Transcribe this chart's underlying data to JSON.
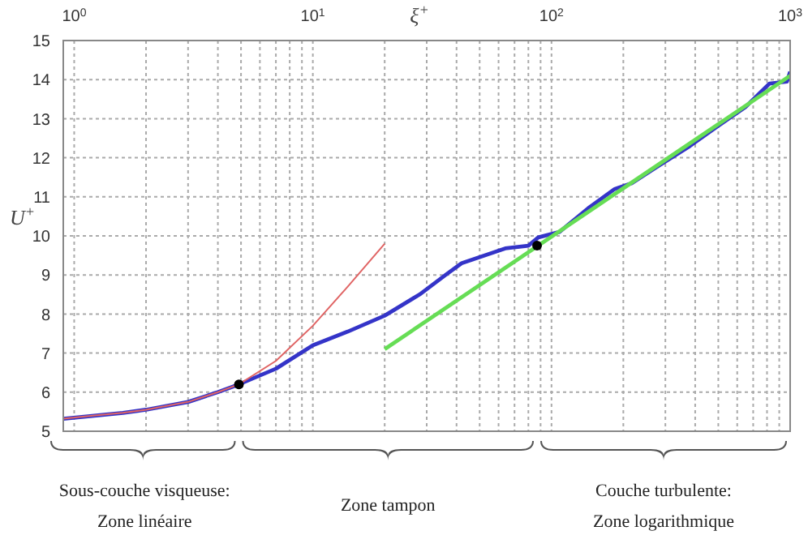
{
  "chart_data": {
    "type": "line",
    "xlabel": "ξ$^{+}$",
    "ylabel": "U$^{+}$",
    "annotations": [
      "Sous-couche visqueuse:",
      "Zone linéaire",
      "Zone tampon",
      "Couche turbulente:",
      "Zone logarithmique"
    ],
    "log": "x",
    "grid": true,
    "legend": false,
    "marker": "none",
    "line_style": "solid",
    "xlim": [
      0.9,
      1000
    ],
    "ylim": [
      5,
      15
    ],
    "yticks": [
      5,
      6,
      7,
      8,
      9,
      10,
      11,
      12,
      13,
      14,
      15
    ],
    "xticks": [
      {
        "value": 1,
        "label": "10$^{0}$"
      },
      {
        "value": 2,
        "label": null
      },
      {
        "value": 3,
        "label": null
      },
      {
        "value": 4,
        "label": null
      },
      {
        "value": 5,
        "label": null
      },
      {
        "value": 6,
        "label": null
      },
      {
        "value": 7,
        "label": null
      },
      {
        "value": 8,
        "label": null
      },
      {
        "value": 9,
        "label": null
      },
      {
        "value": 10,
        "label": "10$^{1}$"
      },
      {
        "value": 20,
        "label": null
      },
      {
        "value": 30,
        "label": null
      },
      {
        "value": 40,
        "label": null
      },
      {
        "value": 50,
        "label": null
      },
      {
        "value": 60,
        "label": null
      },
      {
        "value": 70,
        "label": null
      },
      {
        "value": 80,
        "label": null
      },
      {
        "value": 90,
        "label": null
      },
      {
        "value": 100,
        "label": "10$^{2}$"
      },
      {
        "value": 200,
        "label": null
      },
      {
        "value": 300,
        "label": null
      },
      {
        "value": 400,
        "label": null
      },
      {
        "value": 500,
        "label": null
      },
      {
        "value": 600,
        "label": null
      },
      {
        "value": 700,
        "label": null
      },
      {
        "value": 800,
        "label": null
      },
      {
        "value": 900,
        "label": null
      },
      {
        "value": 1000,
        "label": "10$^{3}$"
      }
    ],
    "series": [
      {
        "type": "line",
        "color": "#e06464",
        "x": [
          0.9,
          1.2,
          1.6,
          2,
          3,
          4,
          4.9,
          7,
          10,
          14,
          20
        ],
        "values": [
          5.32,
          5.4,
          5.47,
          5.55,
          5.75,
          6.0,
          6.2,
          6.8,
          7.7,
          8.7,
          9.8
        ]
      },
      {
        "type": "line",
        "color": "#3434c8",
        "x": [
          0.9,
          1.6,
          2,
          3,
          4,
          4.9,
          7,
          10,
          14,
          20,
          28,
          36,
          42,
          64,
          80,
          88,
          108,
          142,
          184,
          217,
          277,
          380,
          495,
          650,
          820,
          970,
          1000
        ],
        "values": [
          5.32,
          5.47,
          5.55,
          5.75,
          6.0,
          6.2,
          6.6,
          7.2,
          7.55,
          7.96,
          8.5,
          9.0,
          9.3,
          9.68,
          9.75,
          9.96,
          10.1,
          10.7,
          11.2,
          11.35,
          11.77,
          12.3,
          12.8,
          13.3,
          13.9,
          13.95,
          14.2
        ]
      },
      {
        "type": "line",
        "color": "#66dd55",
        "x": [
          20,
          1000
        ],
        "values": [
          7.1,
          14.1
        ]
      },
      {
        "type": "scatter",
        "color": "#000000",
        "marker": "circle",
        "x": [
          4.9,
          87
        ],
        "values": [
          6.2,
          9.75
        ]
      }
    ]
  }
}
